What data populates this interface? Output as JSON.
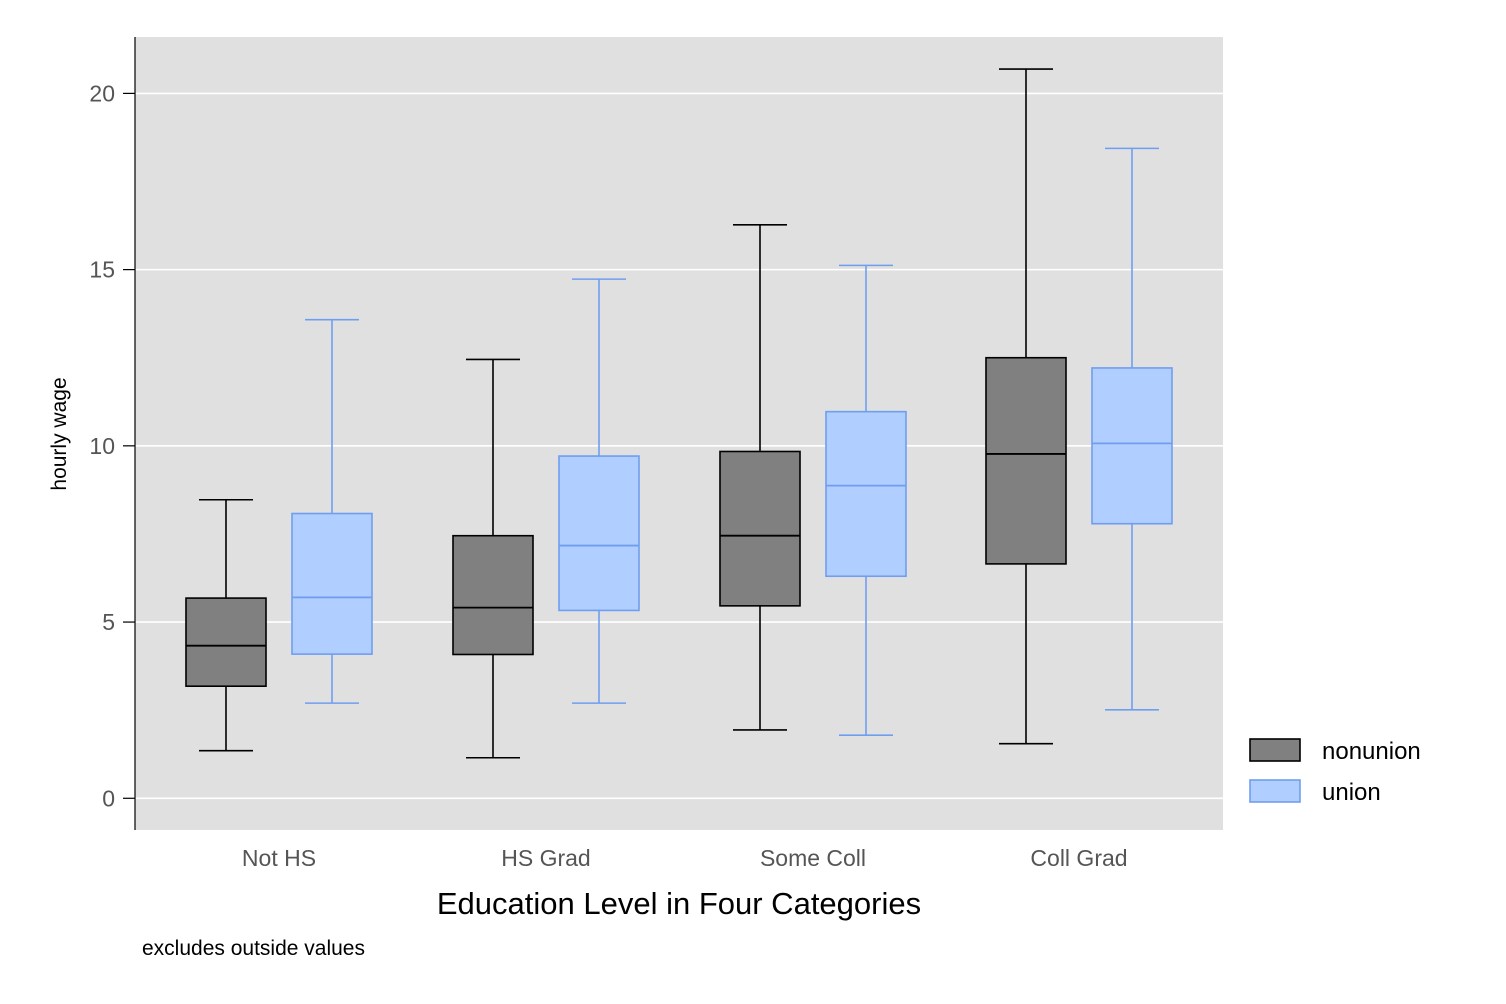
{
  "chart_data": {
    "type": "box",
    "title": "",
    "xlabel": "Education Level in Four Categories",
    "ylabel": "hourly wage",
    "note": "excludes outside values",
    "categories": [
      "Not HS",
      "HS Grad",
      "Some Coll",
      "Coll Grad"
    ],
    "ylim": [
      -0.9,
      21.6
    ],
    "yticks": [
      0,
      5,
      10,
      15,
      20
    ],
    "grid": true,
    "legend_position": "right",
    "series": [
      {
        "name": "nonunion",
        "fill": "#808080",
        "stroke": "#000000",
        "boxes": [
          {
            "min": 1.35,
            "q1": 3.18,
            "median": 4.33,
            "q3": 5.68,
            "max": 8.47
          },
          {
            "min": 1.15,
            "q1": 4.08,
            "median": 5.41,
            "q3": 7.45,
            "max": 12.45
          },
          {
            "min": 1.94,
            "q1": 5.46,
            "median": 7.45,
            "q3": 9.84,
            "max": 16.27
          },
          {
            "min": 1.55,
            "q1": 6.65,
            "median": 9.77,
            "q3": 12.5,
            "max": 20.69
          }
        ]
      },
      {
        "name": "union",
        "fill": "#b0ceff",
        "stroke": "#6f9ef0",
        "boxes": [
          {
            "min": 2.7,
            "q1": 4.09,
            "median": 5.7,
            "q3": 8.08,
            "max": 13.58
          },
          {
            "min": 2.7,
            "q1": 5.33,
            "median": 7.17,
            "q3": 9.71,
            "max": 14.73
          },
          {
            "min": 1.79,
            "q1": 6.3,
            "median": 8.87,
            "q3": 10.97,
            "max": 15.12
          },
          {
            "min": 2.51,
            "q1": 7.79,
            "median": 10.07,
            "q3": 12.21,
            "max": 18.44
          }
        ]
      }
    ]
  },
  "colors": {
    "plot_background": "#e0e0e0",
    "grid": "#ffffff",
    "axis": "#000000"
  }
}
